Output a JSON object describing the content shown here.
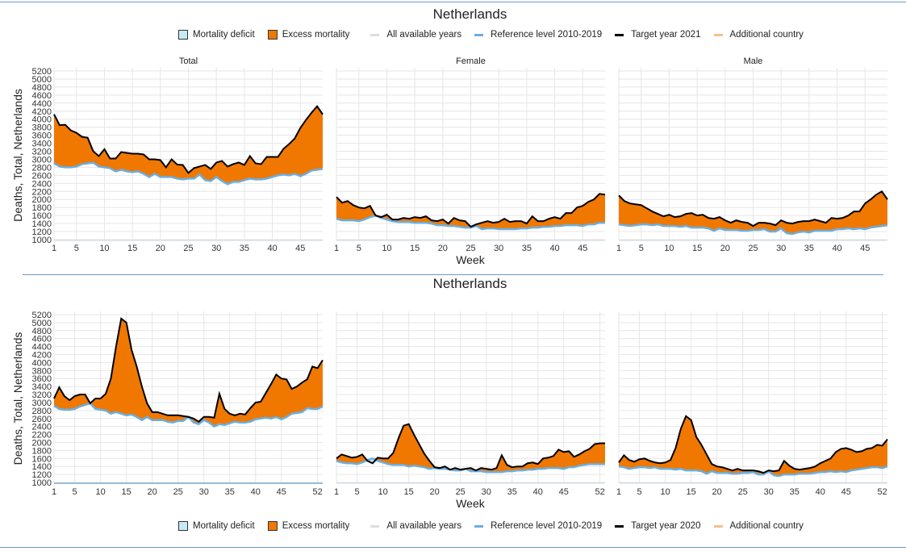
{
  "colors": {
    "excess": "#f07800",
    "deficit": "#c6ebf8",
    "reference": "#6aaee0",
    "target": "#000000",
    "grid": "#e6e6e6",
    "all_years": "#d0d0d0",
    "additional": "#f4a460"
  },
  "chart_data": [
    {
      "type": "area",
      "title": "Netherlands",
      "xlabel": "Week",
      "ylabel": "Deaths, Total, Netherlands",
      "ylim": [
        1000,
        5200
      ],
      "xlim": [
        1,
        49
      ],
      "yticks": [
        1000,
        1200,
        1400,
        1600,
        1800,
        2000,
        2200,
        2400,
        2600,
        2800,
        3000,
        3200,
        3400,
        3600,
        3800,
        4000,
        4200,
        4400,
        4600,
        4800,
        5000,
        5200
      ],
      "xticks": [
        "1",
        "5",
        "10",
        "15",
        "20",
        "25",
        "30",
        "35",
        "40",
        "45"
      ],
      "legend": [
        "Mortality deficit",
        "Excess mortality",
        "All available years",
        "Reference level 2010-2019",
        "Target year 2021",
        "Additional country"
      ],
      "panels": [
        {
          "name": "Total",
          "target": [
            4120,
            3850,
            3860,
            3720,
            3660,
            3560,
            3540,
            3200,
            3080,
            3250,
            3020,
            3020,
            3180,
            3160,
            3140,
            3140,
            3120,
            3000,
            3000,
            2980,
            2800,
            3000,
            2870,
            2860,
            2660,
            2780,
            2820,
            2860,
            2760,
            2920,
            2960,
            2820,
            2880,
            2920,
            2860,
            3080,
            2900,
            2880,
            3060,
            3060,
            3060,
            3260,
            3380,
            3520,
            3780,
            3980,
            4160,
            4320,
            4120
          ],
          "reference": [
            2900,
            2820,
            2800,
            2800,
            2820,
            2880,
            2900,
            2920,
            2820,
            2800,
            2780,
            2700,
            2740,
            2700,
            2680,
            2700,
            2640,
            2560,
            2640,
            2560,
            2560,
            2560,
            2520,
            2500,
            2520,
            2520,
            2620,
            2480,
            2460,
            2560,
            2460,
            2380,
            2440,
            2440,
            2480,
            2520,
            2500,
            2500,
            2520,
            2560,
            2600,
            2620,
            2600,
            2640,
            2580,
            2640,
            2720,
            2740,
            2760
          ]
        },
        {
          "name": "Female",
          "target": [
            2060,
            1920,
            1960,
            1860,
            1800,
            1780,
            1840,
            1600,
            1560,
            1620,
            1500,
            1500,
            1540,
            1520,
            1560,
            1540,
            1580,
            1480,
            1460,
            1500,
            1400,
            1540,
            1480,
            1460,
            1320,
            1380,
            1420,
            1460,
            1420,
            1440,
            1520,
            1440,
            1460,
            1460,
            1400,
            1580,
            1460,
            1460,
            1520,
            1560,
            1520,
            1660,
            1660,
            1800,
            1840,
            1940,
            2000,
            2140,
            2120
          ],
          "reference": [
            1520,
            1480,
            1480,
            1480,
            1460,
            1500,
            1560,
            1600,
            1540,
            1500,
            1460,
            1440,
            1440,
            1440,
            1420,
            1420,
            1420,
            1400,
            1360,
            1360,
            1340,
            1340,
            1320,
            1300,
            1300,
            1340,
            1260,
            1280,
            1280,
            1260,
            1260,
            1260,
            1260,
            1280,
            1280,
            1300,
            1300,
            1320,
            1320,
            1340,
            1340,
            1360,
            1360,
            1360,
            1340,
            1380,
            1380,
            1420,
            1420
          ]
        },
        {
          "name": "Male",
          "target": [
            2100,
            1960,
            1900,
            1880,
            1860,
            1780,
            1700,
            1640,
            1580,
            1620,
            1560,
            1580,
            1640,
            1660,
            1600,
            1620,
            1540,
            1520,
            1560,
            1480,
            1420,
            1480,
            1440,
            1420,
            1340,
            1420,
            1420,
            1400,
            1360,
            1480,
            1420,
            1400,
            1440,
            1460,
            1460,
            1500,
            1460,
            1420,
            1540,
            1520,
            1540,
            1600,
            1700,
            1700,
            1900,
            2000,
            2120,
            2200,
            2000
          ],
          "reference": [
            1380,
            1360,
            1340,
            1360,
            1380,
            1380,
            1360,
            1380,
            1340,
            1340,
            1340,
            1320,
            1340,
            1300,
            1300,
            1300,
            1280,
            1220,
            1280,
            1240,
            1240,
            1240,
            1220,
            1220,
            1240,
            1240,
            1260,
            1200,
            1200,
            1280,
            1160,
            1140,
            1180,
            1200,
            1180,
            1220,
            1220,
            1220,
            1220,
            1260,
            1260,
            1280,
            1260,
            1280,
            1260,
            1300,
            1320,
            1340,
            1360
          ]
        }
      ]
    },
    {
      "type": "area",
      "title": "Netherlands",
      "xlabel": "Week",
      "ylabel": "Deaths, Total, Netherlands",
      "ylim": [
        1000,
        5200
      ],
      "xlim": [
        1,
        53
      ],
      "yticks": [
        1000,
        1200,
        1400,
        1600,
        1800,
        2000,
        2200,
        2400,
        2600,
        2800,
        3000,
        3200,
        3400,
        3600,
        3800,
        4000,
        4200,
        4400,
        4600,
        4800,
        5000,
        5200
      ],
      "xticks": [
        "1",
        "5",
        "10",
        "15",
        "20",
        "25",
        "30",
        "35",
        "40",
        "45",
        "52"
      ],
      "legend": [
        "Mortality deficit",
        "Excess mortality",
        "All available years",
        "Reference level 2010-2019",
        "Target year 2020",
        "Additional country"
      ],
      "panels": [
        {
          "name": "Total",
          "target": [
            3100,
            3380,
            3160,
            3060,
            3160,
            3200,
            3200,
            2980,
            3100,
            3100,
            3220,
            3600,
            4400,
            5100,
            5000,
            4320,
            3900,
            3400,
            2980,
            2760,
            2760,
            2720,
            2680,
            2680,
            2680,
            2660,
            2640,
            2600,
            2520,
            2640,
            2640,
            2620,
            3220,
            2840,
            2720,
            2680,
            2720,
            2700,
            2860,
            3000,
            3020,
            3240,
            3460,
            3700,
            3600,
            3580,
            3340,
            3400,
            3500,
            3580,
            3900,
            3860,
            4060
          ],
          "reference": [
            2920,
            2840,
            2820,
            2820,
            2840,
            2900,
            2940,
            2980,
            2840,
            2820,
            2800,
            2720,
            2760,
            2720,
            2680,
            2700,
            2640,
            2560,
            2640,
            2560,
            2560,
            2560,
            2520,
            2500,
            2540,
            2540,
            2640,
            2500,
            2460,
            2560,
            2500,
            2400,
            2460,
            2440,
            2480,
            2520,
            2500,
            2500,
            2520,
            2580,
            2600,
            2620,
            2600,
            2640,
            2580,
            2640,
            2720,
            2740,
            2760,
            2860,
            2840,
            2840,
            2900
          ]
        },
        {
          "name": "Female",
          "target": [
            1600,
            1700,
            1660,
            1620,
            1640,
            1700,
            1540,
            1480,
            1620,
            1600,
            1600,
            1740,
            2100,
            2420,
            2460,
            2200,
            1960,
            1720,
            1540,
            1380,
            1360,
            1400,
            1320,
            1360,
            1320,
            1340,
            1360,
            1300,
            1360,
            1340,
            1320,
            1360,
            1680,
            1440,
            1380,
            1400,
            1400,
            1480,
            1500,
            1460,
            1600,
            1620,
            1660,
            1820,
            1760,
            1780,
            1640,
            1700,
            1780,
            1840,
            1960,
            1980,
            1980
          ],
          "reference": [
            1540,
            1500,
            1480,
            1480,
            1460,
            1500,
            1560,
            1600,
            1540,
            1500,
            1460,
            1440,
            1440,
            1440,
            1400,
            1420,
            1400,
            1380,
            1340,
            1360,
            1340,
            1340,
            1320,
            1300,
            1300,
            1340,
            1280,
            1280,
            1280,
            1260,
            1260,
            1260,
            1260,
            1280,
            1280,
            1300,
            1300,
            1320,
            1320,
            1340,
            1340,
            1360,
            1360,
            1360,
            1340,
            1380,
            1380,
            1420,
            1440,
            1460,
            1460,
            1460,
            1460
          ]
        },
        {
          "name": "Male",
          "target": [
            1500,
            1680,
            1560,
            1520,
            1580,
            1600,
            1540,
            1500,
            1480,
            1500,
            1560,
            1860,
            2340,
            2660,
            2560,
            2140,
            1940,
            1700,
            1460,
            1400,
            1380,
            1340,
            1300,
            1340,
            1300,
            1300,
            1300,
            1280,
            1240,
            1300,
            1280,
            1300,
            1540,
            1420,
            1340,
            1320,
            1340,
            1360,
            1400,
            1480,
            1540,
            1600,
            1760,
            1840,
            1860,
            1820,
            1760,
            1780,
            1840,
            1860,
            1940,
            1920,
            2080
          ],
          "reference": [
            1400,
            1380,
            1340,
            1360,
            1380,
            1380,
            1360,
            1380,
            1340,
            1340,
            1340,
            1320,
            1340,
            1300,
            1300,
            1300,
            1280,
            1220,
            1280,
            1240,
            1240,
            1240,
            1220,
            1220,
            1240,
            1240,
            1260,
            1200,
            1200,
            1280,
            1180,
            1160,
            1200,
            1200,
            1200,
            1220,
            1220,
            1220,
            1240,
            1260,
            1260,
            1280,
            1260,
            1280,
            1260,
            1300,
            1320,
            1340,
            1360,
            1380,
            1380,
            1360,
            1400
          ]
        }
      ]
    }
  ]
}
